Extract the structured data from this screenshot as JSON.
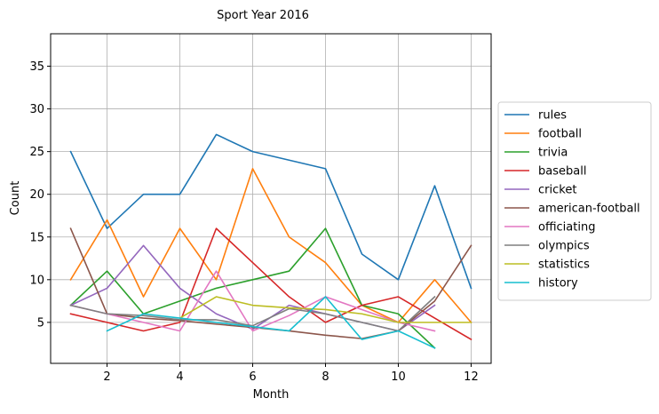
{
  "chart_data": {
    "type": "line",
    "title": "Sport Year 2016",
    "xlabel": "Month",
    "ylabel": "Count",
    "xlim": [
      0.45,
      12.55
    ],
    "ylim": [
      0.2,
      38.8
    ],
    "xticks": [
      2,
      4,
      6,
      8,
      10,
      12
    ],
    "yticks": [
      5,
      10,
      15,
      20,
      25,
      30,
      35
    ],
    "grid": true,
    "legend_position": "right-outside",
    "series": [
      {
        "name": "rules",
        "color": "#1f77b4",
        "x": [
          1,
          2,
          3,
          4,
          5,
          6,
          7,
          8,
          9,
          10,
          11,
          12
        ],
        "values": [
          25,
          16,
          20,
          20,
          27,
          25,
          24,
          23,
          13,
          10,
          21,
          9
        ]
      },
      {
        "name": "football",
        "color": "#ff7f0e",
        "x": [
          1,
          2,
          3,
          4,
          5,
          6,
          7,
          8,
          9,
          10,
          11,
          12
        ],
        "values": [
          10,
          17,
          8,
          16,
          10,
          23,
          15,
          12,
          7,
          5,
          10,
          5
        ]
      },
      {
        "name": "trivia",
        "color": "#2ca02c",
        "x": [
          1,
          2,
          3,
          4,
          5,
          6,
          7,
          8,
          9,
          10,
          11
        ],
        "values": [
          7,
          11,
          6,
          7.5,
          9,
          10,
          11,
          16,
          7,
          6,
          2
        ]
      },
      {
        "name": "baseball",
        "color": "#d62728",
        "x": [
          1,
          2,
          3,
          4,
          5,
          6,
          7,
          8,
          9,
          10,
          11,
          12
        ],
        "values": [
          6,
          5,
          4,
          5,
          16,
          12,
          8,
          5,
          7,
          8,
          5.5,
          3
        ]
      },
      {
        "name": "cricket",
        "color": "#9467bd",
        "x": [
          1,
          2,
          3,
          4,
          5,
          6,
          7,
          8,
          9,
          10,
          11
        ],
        "values": [
          7,
          9,
          14,
          9,
          6,
          4.2,
          7,
          6,
          5,
          4,
          7
        ]
      },
      {
        "name": "american-football",
        "color": "#8c564b",
        "x": [
          1,
          2,
          3,
          4,
          5,
          6,
          7,
          8,
          9,
          10,
          11,
          12
        ],
        "values": [
          16,
          6,
          5.5,
          5.2,
          4.8,
          4.4,
          4,
          3.5,
          3.1,
          4,
          7.5,
          14
        ]
      },
      {
        "name": "officiating",
        "color": "#e377c2",
        "x": [
          1,
          2,
          3,
          4,
          5,
          6,
          7,
          8,
          9,
          10,
          11
        ],
        "values": [
          7,
          6,
          5,
          4,
          11,
          4,
          5.8,
          8,
          6.5,
          5,
          4
        ]
      },
      {
        "name": "olympics",
        "color": "#7f7f7f",
        "x": [
          1,
          2,
          3,
          4,
          5,
          6,
          7,
          8,
          9,
          10,
          11
        ],
        "values": [
          7,
          6,
          5.8,
          5.3,
          5.3,
          4.6,
          6.6,
          6,
          5,
          4,
          8
        ]
      },
      {
        "name": "statistics",
        "color": "#bcbd22",
        "x": [
          4,
          5,
          6,
          7,
          8,
          9,
          10,
          11,
          12
        ],
        "values": [
          5.5,
          8,
          7,
          6.7,
          6.5,
          6,
          5,
          5,
          5
        ]
      },
      {
        "name": "history",
        "color": "#17becf",
        "x": [
          2,
          3,
          4,
          5,
          6,
          7,
          8,
          9,
          10,
          11
        ],
        "values": [
          4,
          6,
          5.5,
          5,
          4.5,
          4,
          8,
          3,
          4,
          2
        ]
      }
    ]
  }
}
